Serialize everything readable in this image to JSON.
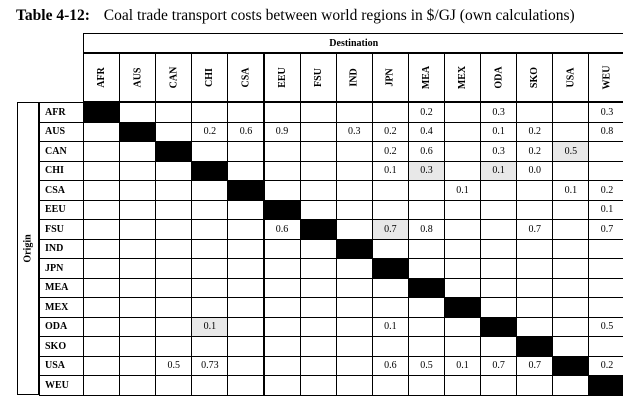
{
  "caption": {
    "label": "Table 4-12:",
    "text": "Coal trade transport costs between world regions in $/GJ (own calculations)"
  },
  "axis": {
    "destination": "Destination",
    "origin": "Origin"
  },
  "regions": [
    "AFR",
    "AUS",
    "CAN",
    "CHI",
    "CSA",
    "EEU",
    "FSU",
    "IND",
    "JPN",
    "MEA",
    "MEX",
    "ODA",
    "SKO",
    "USA",
    "WEU"
  ],
  "rows": [
    {
      "origin": "AFR",
      "values": [
        "",
        "",
        "",
        "",
        "",
        "",
        "",
        "",
        "",
        "0.2",
        "",
        "0.3",
        "",
        "",
        "0.3"
      ]
    },
    {
      "origin": "AUS",
      "values": [
        "",
        "",
        "",
        "0.2",
        "0.6",
        "0.9",
        "",
        "0.3",
        "0.2",
        "0.4",
        "",
        "0.1",
        "0.2",
        "",
        "0.8"
      ]
    },
    {
      "origin": "CAN",
      "values": [
        "",
        "",
        "",
        "",
        "",
        "",
        "",
        "",
        "0.2",
        "0.6",
        "",
        "0.3",
        "0.2",
        "0.5",
        ""
      ]
    },
    {
      "origin": "CHI",
      "values": [
        "",
        "",
        "",
        "",
        "",
        "",
        "",
        "",
        "0.1",
        "0.3",
        "",
        "0.1",
        "0.0",
        "",
        ""
      ]
    },
    {
      "origin": "CSA",
      "values": [
        "",
        "",
        "",
        "",
        "",
        "",
        "",
        "",
        "",
        "",
        "0.1",
        "",
        "",
        "0.1",
        "0.2"
      ]
    },
    {
      "origin": "EEU",
      "values": [
        "",
        "",
        "",
        "",
        "",
        "",
        "",
        "",
        "",
        "",
        "",
        "",
        "",
        "",
        "0.1"
      ]
    },
    {
      "origin": "FSU",
      "values": [
        "",
        "",
        "",
        "",
        "",
        "0.6",
        "",
        "",
        "0.7",
        "0.8",
        "",
        "",
        "0.7",
        "",
        "0.7"
      ]
    },
    {
      "origin": "IND",
      "values": [
        "",
        "",
        "",
        "",
        "",
        "",
        "",
        "",
        "",
        "",
        "",
        "",
        "",
        "",
        ""
      ]
    },
    {
      "origin": "JPN",
      "values": [
        "",
        "",
        "",
        "",
        "",
        "",
        "",
        "",
        "",
        "",
        "",
        "",
        "",
        "",
        ""
      ]
    },
    {
      "origin": "MEA",
      "values": [
        "",
        "",
        "",
        "",
        "",
        "",
        "",
        "",
        "",
        "",
        "",
        "",
        "",
        "",
        ""
      ]
    },
    {
      "origin": "MEX",
      "values": [
        "",
        "",
        "",
        "",
        "",
        "",
        "",
        "",
        "",
        "",
        "",
        "",
        "",
        "",
        ""
      ]
    },
    {
      "origin": "ODA",
      "values": [
        "",
        "",
        "",
        "0.1",
        "",
        "",
        "",
        "",
        "0.1",
        "",
        "",
        "",
        "",
        "",
        "0.5"
      ]
    },
    {
      "origin": "SKO",
      "values": [
        "",
        "",
        "",
        "",
        "",
        "",
        "",
        "",
        "",
        "",
        "",
        "",
        "",
        "",
        ""
      ]
    },
    {
      "origin": "USA",
      "values": [
        "",
        "",
        "0.5",
        "0.73",
        "",
        "",
        "",
        "",
        "0.6",
        "0.5",
        "0.1",
        "0.7",
        "0.7",
        "",
        "0.2"
      ]
    },
    {
      "origin": "WEU",
      "values": [
        "",
        "",
        "",
        "",
        "",
        "",
        "",
        "",
        "",
        "",
        "",
        "",
        "",
        "",
        ""
      ]
    }
  ],
  "shaded_cells": [
    {
      "row": "CAN",
      "col": "USA"
    },
    {
      "row": "CHI",
      "col": "MEA"
    },
    {
      "row": "CHI",
      "col": "ODA"
    },
    {
      "row": "FSU",
      "col": "JPN"
    },
    {
      "row": "ODA",
      "col": "CHI"
    }
  ],
  "colors": {
    "diagonal": "#000000",
    "shaded": "#e8e8e8",
    "border": "#000000"
  }
}
